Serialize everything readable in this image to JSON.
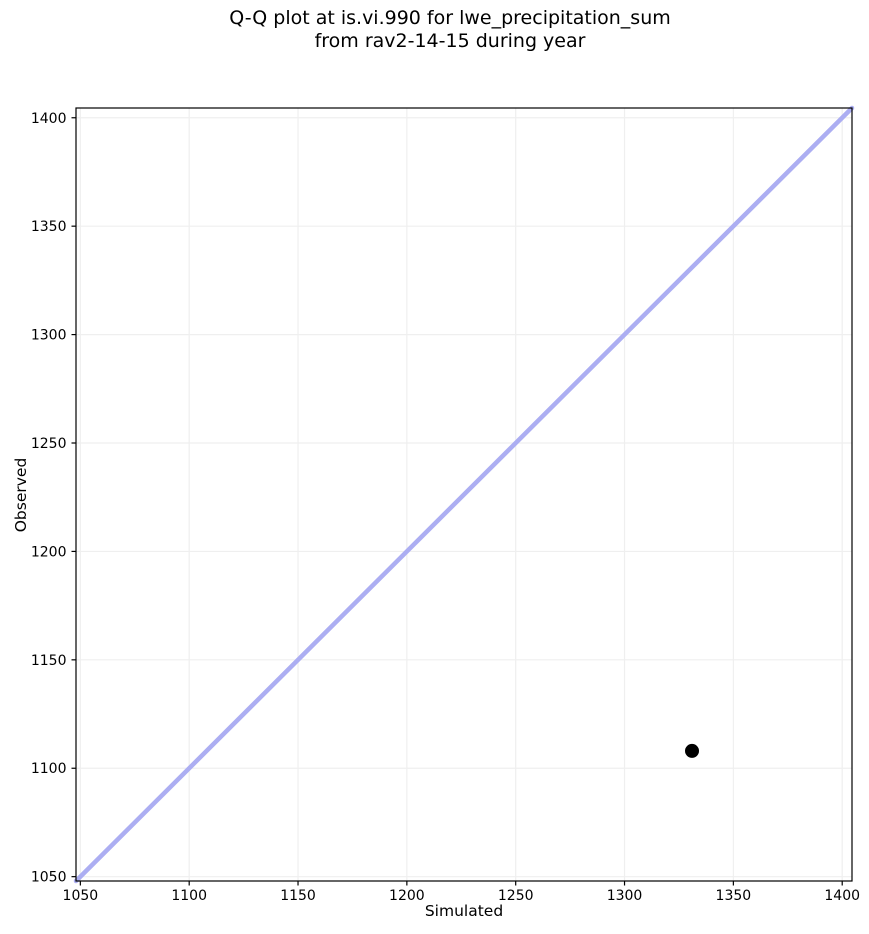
{
  "title": {
    "line1": "Q-Q plot at is.vi.990 for lwe_precipitation_sum",
    "line2": "from rav2-14-15 during year"
  },
  "chart_data": {
    "type": "scatter",
    "title": "Q-Q plot at is.vi.990 for lwe_precipitation_sum\nfrom rav2-14-15 during year",
    "xlabel": "Simulated",
    "ylabel": "Observed",
    "xlim": [
      1048,
      1404.5
    ],
    "ylim": [
      1048,
      1404.5
    ],
    "xticks": [
      1050,
      1100,
      1150,
      1200,
      1250,
      1300,
      1350,
      1400
    ],
    "yticks": [
      1050,
      1100,
      1150,
      1200,
      1250,
      1300,
      1350,
      1400
    ],
    "grid": true,
    "grid_color": "#efefef",
    "axis_color": "#000000",
    "background": "#ffffff",
    "legend": null,
    "series": [
      {
        "name": "identity-line",
        "type": "line",
        "color": "#acaef2",
        "width": 4.5,
        "points": [
          {
            "x": 1048,
            "y": 1048
          },
          {
            "x": 1404.5,
            "y": 1404.5
          }
        ]
      },
      {
        "name": "quantile-points",
        "type": "scatter",
        "color": "#000000",
        "marker_radius": 7,
        "points": [
          {
            "x": 1331,
            "y": 1108
          }
        ]
      }
    ]
  }
}
